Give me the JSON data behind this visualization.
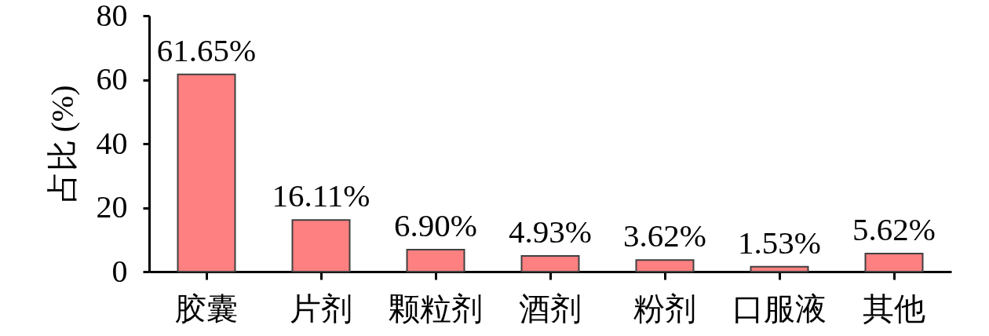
{
  "chart_data": {
    "type": "bar",
    "ylabel": "占比 (%)",
    "categories": [
      "胶囊",
      "片剂",
      "颗粒剂",
      "酒剂",
      "粉剂",
      "口服液",
      "其他"
    ],
    "values": [
      61.65,
      16.11,
      6.9,
      4.93,
      3.62,
      1.53,
      5.62
    ],
    "value_labels": [
      "61.65%",
      "16.11%",
      "6.90%",
      "4.93%",
      "3.62%",
      "1.53%",
      "5.62%"
    ],
    "color": "#ff8080",
    "ylim": [
      0,
      80
    ],
    "yticks": [
      0,
      20,
      40,
      60,
      80
    ]
  }
}
